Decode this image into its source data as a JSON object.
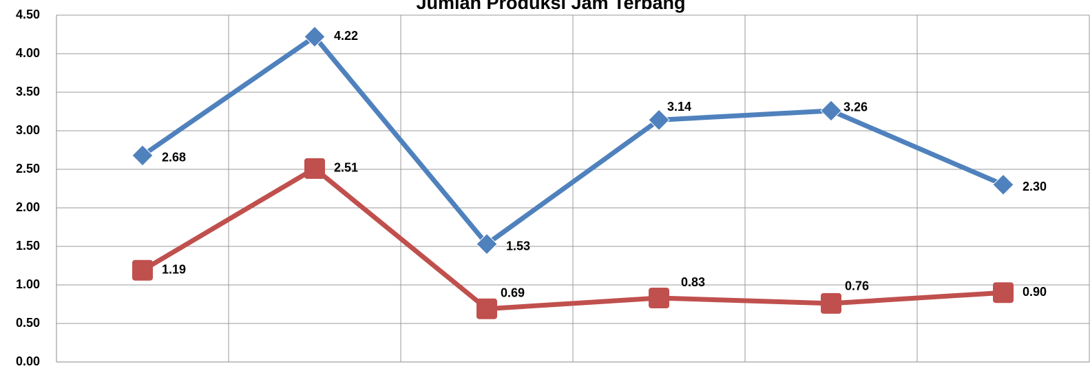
{
  "chart_data": {
    "type": "line",
    "title": "Jumlah Produksi Jam Terbang",
    "categories": [
      null,
      null,
      null,
      null,
      null,
      null
    ],
    "series": [
      {
        "color": "#4f81bd",
        "marker": "diamond",
        "values": [
          2.68,
          4.22,
          1.53,
          3.14,
          3.26,
          2.3
        ],
        "value_labels": [
          "2.68",
          "4.22",
          "1.53",
          "3.14",
          "3.26",
          "2.30"
        ]
      },
      {
        "color": "#c0504d",
        "marker": "square",
        "values": [
          1.19,
          2.51,
          0.69,
          0.83,
          0.76,
          0.9
        ],
        "value_labels": [
          "1.19",
          "2.51",
          "0.69",
          "0.83",
          "0.76",
          "0.90"
        ]
      }
    ],
    "ylim": [
      0,
      4.5
    ],
    "yticks": [
      {
        "value": 0,
        "label": "0.00"
      },
      {
        "value": 0.5,
        "label": "0.50"
      },
      {
        "value": 1,
        "label": "1.00"
      },
      {
        "value": 1.5,
        "label": "1.50"
      },
      {
        "value": 2,
        "label": "2.00"
      },
      {
        "value": 2.5,
        "label": "2.50"
      },
      {
        "value": 3,
        "label": "3.00"
      },
      {
        "value": 3.5,
        "label": "3.50"
      },
      {
        "value": 4,
        "label": "4.00"
      },
      {
        "value": 4.5,
        "label": "4.50"
      }
    ],
    "grid": true
  }
}
